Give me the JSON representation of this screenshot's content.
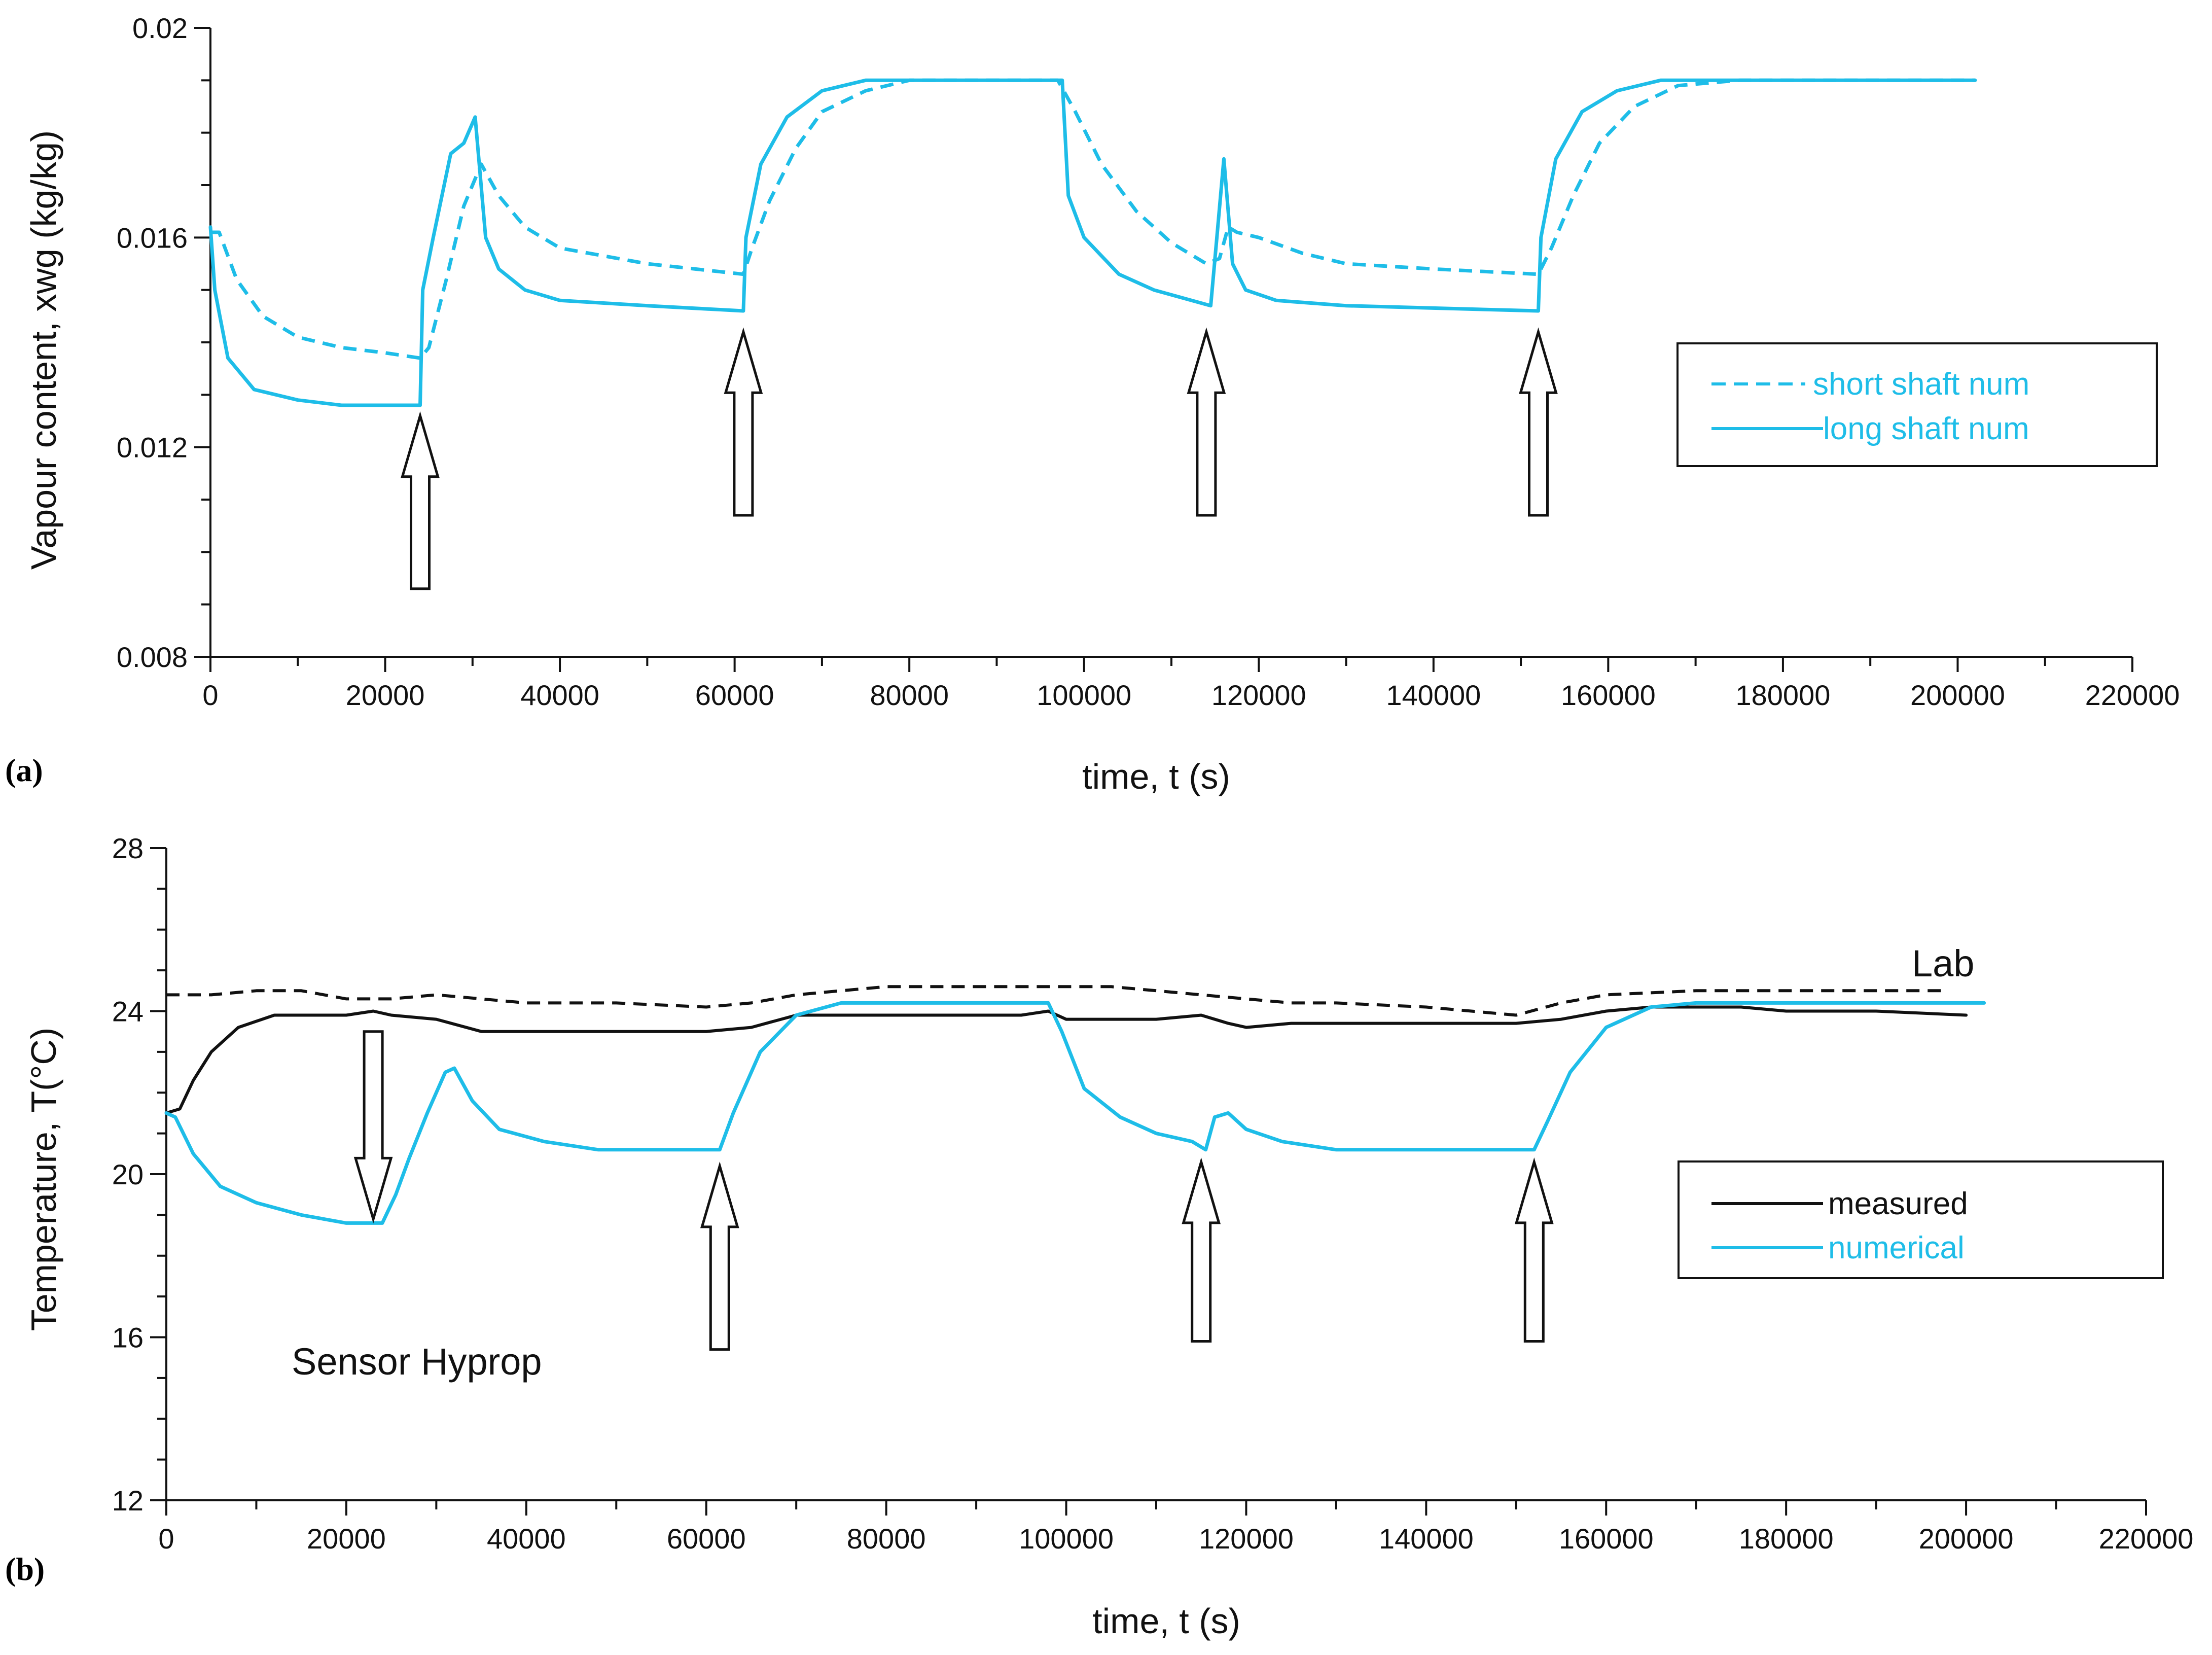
{
  "colors": {
    "cyan": "#1ebde8",
    "black": "#111111"
  },
  "chart_data": [
    {
      "type": "line",
      "panel": "(a)",
      "title": "",
      "xlabel": "time, t (s)",
      "ylabel": "Vapour content, xwg (kg/kg)",
      "xlim": [
        0,
        220000
      ],
      "ylim": [
        0.008,
        0.02
      ],
      "xticks": [
        0,
        20000,
        40000,
        60000,
        80000,
        100000,
        120000,
        140000,
        160000,
        180000,
        200000,
        220000
      ],
      "yticks": [
        0.008,
        0.012,
        0.016,
        0.02
      ],
      "ytick_labels": [
        "0.008",
        "0.012",
        "0.016",
        "0.02"
      ],
      "legend_position": "right",
      "series": [
        {
          "name": "short shaft num",
          "style": "dashed",
          "color": "#1ebde8",
          "points": [
            [
              0,
              0.0161
            ],
            [
              1000,
              0.0161
            ],
            [
              3000,
              0.0152
            ],
            [
              6000,
              0.0145
            ],
            [
              10000,
              0.0141
            ],
            [
              15000,
              0.0139
            ],
            [
              20000,
              0.0138
            ],
            [
              24000,
              0.0137
            ],
            [
              25000,
              0.0139
            ],
            [
              27000,
              0.0152
            ],
            [
              29000,
              0.0166
            ],
            [
              31000,
              0.0174
            ],
            [
              33000,
              0.0168
            ],
            [
              36000,
              0.0162
            ],
            [
              40000,
              0.0158
            ],
            [
              50000,
              0.0155
            ],
            [
              61000,
              0.0153
            ],
            [
              62000,
              0.0158
            ],
            [
              64000,
              0.0167
            ],
            [
              67000,
              0.0177
            ],
            [
              70000,
              0.0184
            ],
            [
              75000,
              0.0188
            ],
            [
              80000,
              0.019
            ],
            [
              97000,
              0.019
            ],
            [
              99000,
              0.0184
            ],
            [
              102000,
              0.0174
            ],
            [
              106000,
              0.0165
            ],
            [
              110000,
              0.0159
            ],
            [
              114000,
              0.0155
            ],
            [
              115500,
              0.0156
            ],
            [
              116500,
              0.0162
            ],
            [
              117500,
              0.0161
            ],
            [
              120000,
              0.016
            ],
            [
              125000,
              0.0157
            ],
            [
              130000,
              0.0155
            ],
            [
              140000,
              0.0154
            ],
            [
              152000,
              0.0153
            ],
            [
              153500,
              0.0158
            ],
            [
              156000,
              0.0168
            ],
            [
              159000,
              0.0178
            ],
            [
              163000,
              0.0185
            ],
            [
              168000,
              0.0189
            ],
            [
              175000,
              0.019
            ],
            [
              202000,
              0.019
            ]
          ]
        },
        {
          "name": "long shaft num",
          "style": "solid",
          "color": "#1ebde8",
          "points": [
            [
              0,
              0.0162
            ],
            [
              500,
              0.015
            ],
            [
              2000,
              0.0137
            ],
            [
              5000,
              0.0131
            ],
            [
              10000,
              0.0129
            ],
            [
              15000,
              0.0128
            ],
            [
              24000,
              0.0128
            ],
            [
              24300,
              0.015
            ],
            [
              25500,
              0.016
            ],
            [
              27500,
              0.0176
            ],
            [
              29000,
              0.0178
            ],
            [
              30300,
              0.0183
            ],
            [
              31500,
              0.016
            ],
            [
              33000,
              0.0154
            ],
            [
              36000,
              0.015
            ],
            [
              40000,
              0.0148
            ],
            [
              50000,
              0.0147
            ],
            [
              61000,
              0.0146
            ],
            [
              61300,
              0.016
            ],
            [
              63000,
              0.0174
            ],
            [
              66000,
              0.0183
            ],
            [
              70000,
              0.0188
            ],
            [
              75000,
              0.019
            ],
            [
              97500,
              0.019
            ],
            [
              98200,
              0.0168
            ],
            [
              100000,
              0.016
            ],
            [
              104000,
              0.0153
            ],
            [
              108000,
              0.015
            ],
            [
              114500,
              0.0147
            ],
            [
              115200,
              0.016
            ],
            [
              116000,
              0.0175
            ],
            [
              117000,
              0.0155
            ],
            [
              118500,
              0.015
            ],
            [
              122000,
              0.0148
            ],
            [
              130000,
              0.0147
            ],
            [
              152000,
              0.0146
            ],
            [
              152300,
              0.016
            ],
            [
              154000,
              0.0175
            ],
            [
              157000,
              0.0184
            ],
            [
              161000,
              0.0188
            ],
            [
              166000,
              0.019
            ],
            [
              202000,
              0.019
            ]
          ]
        }
      ]
    },
    {
      "type": "line",
      "panel": "(b)",
      "title": "",
      "xlabel": "time, t (s)",
      "ylabel": "Temperature, T(°C)",
      "xlim": [
        0,
        220000
      ],
      "ylim": [
        12,
        28
      ],
      "xticks": [
        0,
        20000,
        40000,
        60000,
        80000,
        100000,
        120000,
        140000,
        160000,
        180000,
        200000,
        220000
      ],
      "yticks": [
        12,
        16,
        20,
        24,
        28
      ],
      "legend_position": "right",
      "annotations": [
        "Lab",
        "Sensor Hyprop"
      ],
      "series": [
        {
          "name": "Lab",
          "style": "dashed",
          "color": "#111111",
          "points": [
            [
              0,
              24.4
            ],
            [
              5000,
              24.4
            ],
            [
              10000,
              24.5
            ],
            [
              15000,
              24.5
            ],
            [
              20000,
              24.3
            ],
            [
              25000,
              24.3
            ],
            [
              30000,
              24.4
            ],
            [
              35000,
              24.3
            ],
            [
              40000,
              24.2
            ],
            [
              50000,
              24.2
            ],
            [
              60000,
              24.1
            ],
            [
              65000,
              24.2
            ],
            [
              70000,
              24.4
            ],
            [
              75000,
              24.5
            ],
            [
              80000,
              24.6
            ],
            [
              90000,
              24.6
            ],
            [
              100000,
              24.6
            ],
            [
              105000,
              24.6
            ],
            [
              110000,
              24.5
            ],
            [
              115000,
              24.4
            ],
            [
              120000,
              24.3
            ],
            [
              125000,
              24.2
            ],
            [
              130000,
              24.2
            ],
            [
              140000,
              24.1
            ],
            [
              150000,
              23.9
            ],
            [
              155000,
              24.2
            ],
            [
              160000,
              24.4
            ],
            [
              170000,
              24.5
            ],
            [
              180000,
              24.5
            ],
            [
              190000,
              24.5
            ],
            [
              198000,
              24.5
            ]
          ]
        },
        {
          "name": "measured",
          "style": "solid",
          "color": "#111111",
          "points": [
            [
              0,
              21.5
            ],
            [
              1500,
              21.6
            ],
            [
              3000,
              22.3
            ],
            [
              5000,
              23.0
            ],
            [
              8000,
              23.6
            ],
            [
              12000,
              23.9
            ],
            [
              20000,
              23.9
            ],
            [
              23000,
              24.0
            ],
            [
              25000,
              23.9
            ],
            [
              30000,
              23.8
            ],
            [
              35000,
              23.5
            ],
            [
              40000,
              23.5
            ],
            [
              60000,
              23.5
            ],
            [
              65000,
              23.6
            ],
            [
              70000,
              23.9
            ],
            [
              80000,
              23.9
            ],
            [
              95000,
              23.9
            ],
            [
              98000,
              24.0
            ],
            [
              100000,
              23.8
            ],
            [
              110000,
              23.8
            ],
            [
              115000,
              23.9
            ],
            [
              118000,
              23.7
            ],
            [
              120000,
              23.6
            ],
            [
              125000,
              23.7
            ],
            [
              140000,
              23.7
            ],
            [
              150000,
              23.7
            ],
            [
              155000,
              23.8
            ],
            [
              160000,
              24.0
            ],
            [
              165000,
              24.1
            ],
            [
              175000,
              24.1
            ],
            [
              180000,
              24.0
            ],
            [
              190000,
              24.0
            ],
            [
              200000,
              23.9
            ]
          ]
        },
        {
          "name": "numerical",
          "style": "solid",
          "color": "#1ebde8",
          "points": [
            [
              0,
              21.5
            ],
            [
              1000,
              21.4
            ],
            [
              3000,
              20.5
            ],
            [
              6000,
              19.7
            ],
            [
              10000,
              19.3
            ],
            [
              15000,
              19.0
            ],
            [
              20000,
              18.8
            ],
            [
              24000,
              18.8
            ],
            [
              25500,
              19.5
            ],
            [
              27000,
              20.4
            ],
            [
              29000,
              21.5
            ],
            [
              31000,
              22.5
            ],
            [
              32000,
              22.6
            ],
            [
              34000,
              21.8
            ],
            [
              37000,
              21.1
            ],
            [
              42000,
              20.8
            ],
            [
              48000,
              20.6
            ],
            [
              61500,
              20.6
            ],
            [
              63000,
              21.5
            ],
            [
              66000,
              23.0
            ],
            [
              70000,
              23.9
            ],
            [
              75000,
              24.2
            ],
            [
              98000,
              24.2
            ],
            [
              99500,
              23.5
            ],
            [
              102000,
              22.1
            ],
            [
              106000,
              21.4
            ],
            [
              110000,
              21.0
            ],
            [
              114000,
              20.8
            ],
            [
              115500,
              20.6
            ],
            [
              116500,
              21.4
            ],
            [
              118000,
              21.5
            ],
            [
              120000,
              21.1
            ],
            [
              124000,
              20.8
            ],
            [
              130000,
              20.6
            ],
            [
              152000,
              20.6
            ],
            [
              153500,
              21.3
            ],
            [
              156000,
              22.5
            ],
            [
              160000,
              23.6
            ],
            [
              165000,
              24.1
            ],
            [
              170000,
              24.2
            ],
            [
              202000,
              24.2
            ]
          ]
        }
      ]
    }
  ],
  "legend_a": {
    "entries": [
      "short shaft num",
      "long shaft num"
    ]
  },
  "legend_b": {
    "entries": [
      "measured",
      "numerical"
    ]
  },
  "arrows_a": [
    {
      "t": 24000,
      "direction": "up",
      "from": 0.0093,
      "to": 0.0126
    },
    {
      "t": 61000,
      "direction": "up",
      "from": 0.0107,
      "to": 0.0142
    },
    {
      "t": 114000,
      "direction": "up",
      "from": 0.0107,
      "to": 0.0142
    },
    {
      "t": 152000,
      "direction": "up",
      "from": 0.0107,
      "to": 0.0142
    }
  ],
  "arrows_b": [
    {
      "t": 23000,
      "direction": "down",
      "from": 23.5,
      "to": 18.9
    },
    {
      "t": 61500,
      "direction": "up",
      "from": 15.7,
      "to": 20.2
    },
    {
      "t": 115000,
      "direction": "up",
      "from": 15.9,
      "to": 20.3
    },
    {
      "t": 152000,
      "direction": "up",
      "from": 15.9,
      "to": 20.3
    }
  ],
  "labels": {
    "panel_a": "(a)",
    "panel_b": "(b)",
    "lab": "Lab",
    "sensor": "Sensor Hyprop"
  }
}
